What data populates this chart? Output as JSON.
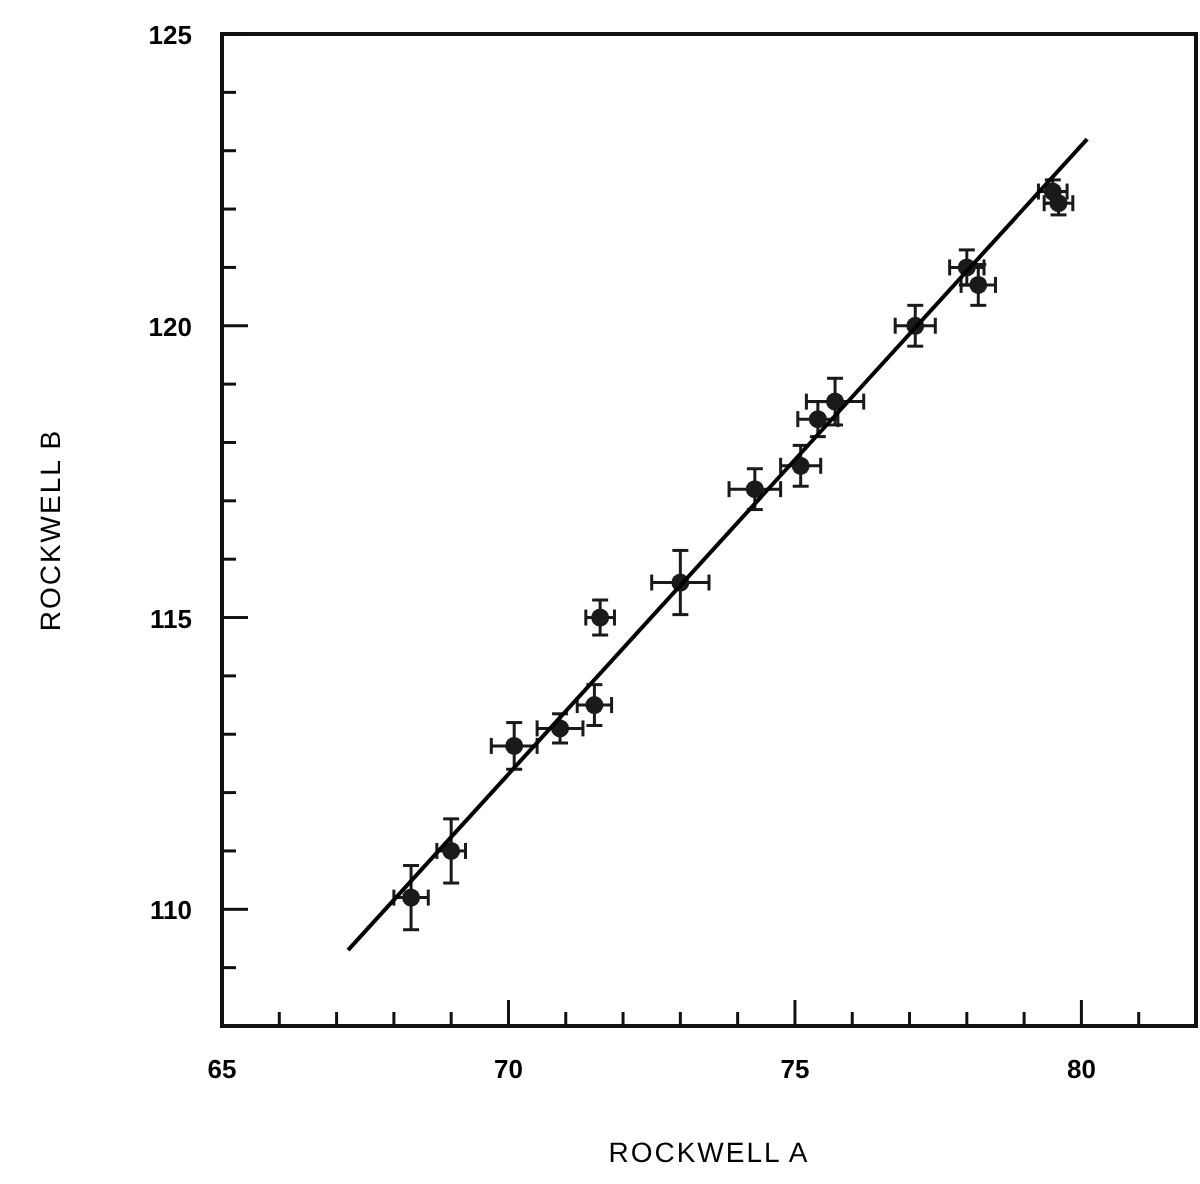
{
  "chart_data": {
    "type": "scatter",
    "xlabel": "ROCKWELL A",
    "ylabel": "ROCKWELL B",
    "xlim": [
      65,
      82
    ],
    "ylim": [
      108,
      125
    ],
    "xticks": [
      65,
      {
        "value": 66,
        "label": null
      },
      {
        "value": 67,
        "label": null
      },
      {
        "value": 68,
        "label": null
      },
      {
        "value": 69,
        "label": null
      },
      70,
      {
        "value": 71,
        "label": null
      },
      {
        "value": 72,
        "label": null
      },
      {
        "value": 73,
        "label": null
      },
      {
        "value": 74,
        "label": null
      },
      75,
      {
        "value": 76,
        "label": null
      },
      {
        "value": 77,
        "label": null
      },
      {
        "value": 78,
        "label": null
      },
      {
        "value": 79,
        "label": null
      },
      80,
      {
        "value": 81,
        "label": null
      }
    ],
    "yticks": [
      {
        "value": 109,
        "label": null
      },
      110,
      {
        "value": 111,
        "label": null
      },
      {
        "value": 112,
        "label": null
      },
      {
        "value": 113,
        "label": null
      },
      {
        "value": 114,
        "label": null
      },
      115,
      {
        "value": 116,
        "label": null
      },
      {
        "value": 117,
        "label": null
      },
      {
        "value": 118,
        "label": null
      },
      {
        "value": 119,
        "label": null
      },
      120,
      {
        "value": 121,
        "label": null
      },
      {
        "value": 122,
        "label": null
      },
      {
        "value": 123,
        "label": null
      },
      {
        "value": 124,
        "label": null
      },
      125
    ],
    "grid": false,
    "series": [
      {
        "color": "#1a1a1a",
        "marker": "circle",
        "x": [
          68.3,
          69.0,
          70.1,
          70.9,
          71.5,
          71.6,
          73.0,
          74.3,
          75.1,
          75.4,
          75.7,
          77.1,
          78.0,
          78.2,
          79.5,
          79.6
        ],
        "values": [
          110.2,
          111.0,
          112.8,
          113.1,
          113.5,
          115.0,
          115.6,
          117.2,
          117.6,
          118.4,
          118.7,
          120.0,
          121.0,
          120.7,
          122.3,
          122.1
        ],
        "xerrors": [
          0.3,
          0.25,
          0.4,
          0.4,
          0.3,
          0.25,
          0.5,
          0.45,
          0.35,
          0.35,
          0.5,
          0.35,
          0.3,
          0.3,
          0.25,
          0.25
        ],
        "errors": [
          0.55,
          0.55,
          0.4,
          0.25,
          0.35,
          0.3,
          0.55,
          0.35,
          0.35,
          0.3,
          0.4,
          0.35,
          0.3,
          0.35,
          0.2,
          0.2
        ]
      },
      {
        "type": "line",
        "color": "#000000",
        "x": [
          67.2,
          80.1
        ],
        "values": [
          109.3,
          123.2
        ]
      }
    ]
  }
}
